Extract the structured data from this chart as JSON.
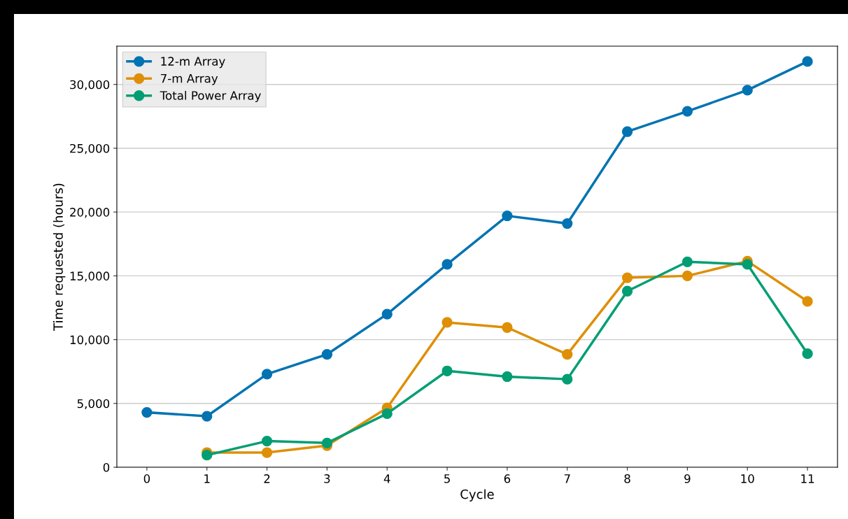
{
  "chart_data": {
    "type": "line",
    "xlabel": "Cycle",
    "ylabel": "Time requested (hours)",
    "x": [
      0,
      1,
      2,
      3,
      4,
      5,
      6,
      7,
      8,
      9,
      10,
      11
    ],
    "series": [
      {
        "name": "12-m Array",
        "color": "#0173b2",
        "values": [
          4300,
          4000,
          7300,
          8850,
          12000,
          15900,
          19700,
          19100,
          26300,
          27900,
          29550,
          31800
        ]
      },
      {
        "name": "7-m Array",
        "color": "#de8f05",
        "values": [
          null,
          1150,
          1150,
          1700,
          4650,
          11350,
          10950,
          8850,
          14850,
          15000,
          16150,
          13000
        ]
      },
      {
        "name": "Total Power Array",
        "color": "#029e73",
        "values": [
          null,
          950,
          2050,
          1900,
          4200,
          7550,
          7100,
          6900,
          13800,
          16100,
          15900,
          8900
        ]
      }
    ],
    "xlim": [
      -0.5,
      11.5
    ],
    "xticks": [
      0,
      1,
      2,
      3,
      4,
      5,
      6,
      7,
      8,
      9,
      10,
      11
    ],
    "ylim": [
      0,
      33000
    ],
    "yticks": [
      0,
      {
        "value": 5000,
        "label": "5,000"
      },
      {
        "value": 10000,
        "label": "10,000"
      },
      {
        "value": 15000,
        "label": "15,000"
      },
      {
        "value": 20000,
        "label": "20,000"
      },
      {
        "value": 25000,
        "label": "25,000"
      },
      {
        "value": 30000,
        "label": "30,000"
      }
    ],
    "grid": "y",
    "legend": "top left",
    "marker": "circle",
    "line_style": "solid"
  }
}
